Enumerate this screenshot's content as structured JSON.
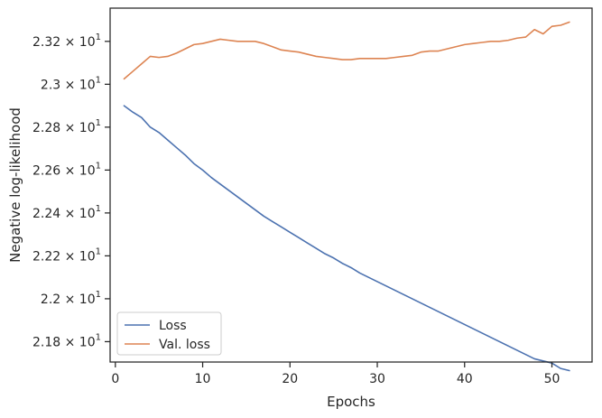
{
  "chart_data": {
    "type": "line",
    "xlabel": "Epochs",
    "ylabel": "Negative log-likelihood",
    "xlim": [
      -0.6,
      54.6
    ],
    "ylim": [
      21.705,
      23.355
    ],
    "x_ticks": [
      0,
      10,
      20,
      30,
      40,
      50
    ],
    "y_ticks": [
      {
        "value": 21.8,
        "mantissa": "2.18"
      },
      {
        "value": 22.0,
        "mantissa": "2.2"
      },
      {
        "value": 22.2,
        "mantissa": "2.22"
      },
      {
        "value": 22.4,
        "mantissa": "2.24"
      },
      {
        "value": 22.6,
        "mantissa": "2.26"
      },
      {
        "value": 22.8,
        "mantissa": "2.28"
      },
      {
        "value": 23.0,
        "mantissa": "2.3"
      },
      {
        "value": 23.2,
        "mantissa": "2.32"
      }
    ],
    "y_tick_multiplier": "× 10",
    "y_tick_exponent": "1",
    "grid": false,
    "legend_position": "lower-left",
    "x": [
      1,
      2,
      3,
      4,
      5,
      6,
      7,
      8,
      9,
      10,
      11,
      12,
      13,
      14,
      15,
      16,
      17,
      18,
      19,
      20,
      21,
      22,
      23,
      24,
      25,
      26,
      27,
      28,
      29,
      30,
      31,
      32,
      33,
      34,
      35,
      36,
      37,
      38,
      39,
      40,
      41,
      42,
      43,
      44,
      45,
      46,
      47,
      48,
      49,
      50,
      51,
      52
    ],
    "series": [
      {
        "name": "Loss",
        "color": "#4c72b0",
        "values": [
          22.9,
          22.87,
          22.845,
          22.8,
          22.775,
          22.74,
          22.705,
          22.67,
          22.63,
          22.6,
          22.565,
          22.535,
          22.505,
          22.475,
          22.445,
          22.415,
          22.385,
          22.36,
          22.335,
          22.31,
          22.285,
          22.26,
          22.235,
          22.21,
          22.19,
          22.165,
          22.145,
          22.12,
          22.1,
          22.08,
          22.06,
          22.04,
          22.02,
          22.0,
          21.98,
          21.96,
          21.94,
          21.92,
          21.9,
          21.88,
          21.86,
          21.84,
          21.82,
          21.8,
          21.78,
          21.76,
          21.74,
          21.72,
          21.71,
          21.7,
          21.675,
          21.665
        ]
      },
      {
        "name": "Val. loss",
        "color": "#dd8452",
        "values": [
          23.025,
          23.06,
          23.095,
          23.13,
          23.125,
          23.13,
          23.145,
          23.165,
          23.185,
          23.19,
          23.2,
          23.21,
          23.205,
          23.2,
          23.2,
          23.2,
          23.19,
          23.175,
          23.16,
          23.155,
          23.15,
          23.14,
          23.13,
          23.125,
          23.12,
          23.115,
          23.115,
          23.12,
          23.12,
          23.12,
          23.12,
          23.125,
          23.13,
          23.135,
          23.15,
          23.155,
          23.155,
          23.165,
          23.175,
          23.185,
          23.19,
          23.195,
          23.2,
          23.2,
          23.205,
          23.215,
          23.22,
          23.255,
          23.235,
          23.27,
          23.275,
          23.29
        ]
      }
    ]
  }
}
